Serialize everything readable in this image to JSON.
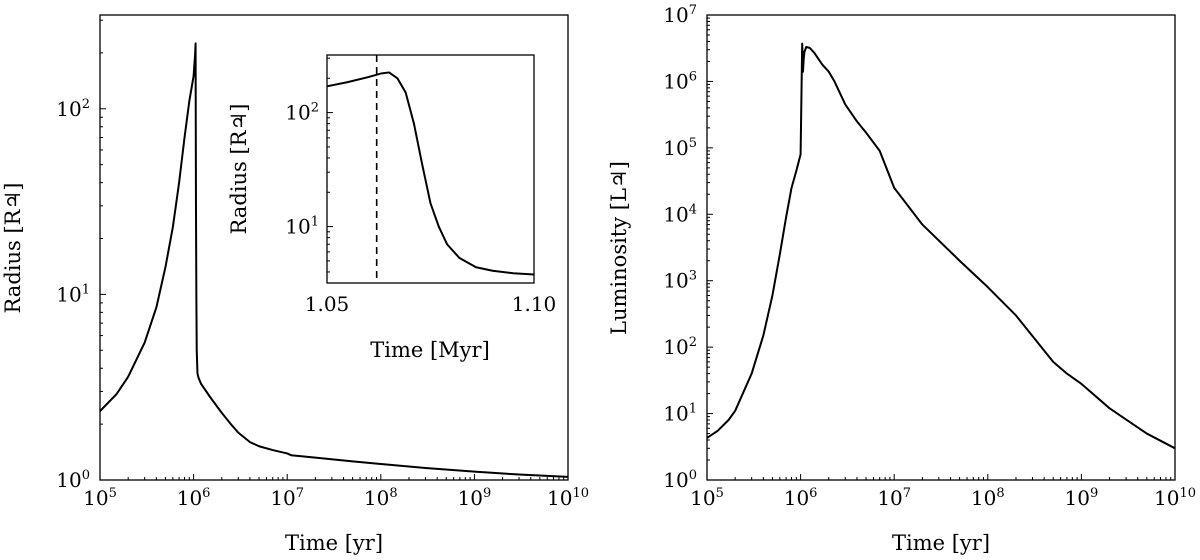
{
  "chart_data": [
    {
      "id": "radius",
      "type": "line",
      "xscale": "log",
      "yscale": "log",
      "xlabel": "Time [yr]",
      "ylabel": "Radius [R♃]",
      "xlim": [
        100000,
        10000000000
      ],
      "ylim": [
        1,
        320
      ],
      "xticks": [
        {
          "base": "10",
          "exp": "5"
        },
        {
          "base": "10",
          "exp": "6"
        },
        {
          "base": "10",
          "exp": "7"
        },
        {
          "base": "10",
          "exp": "8"
        },
        {
          "base": "10",
          "exp": "9"
        },
        {
          "base": "10",
          "exp": "10"
        }
      ],
      "yticks": [
        {
          "base": "10",
          "exp": "0"
        },
        {
          "base": "10",
          "exp": "1"
        },
        {
          "base": "10",
          "exp": "2"
        }
      ],
      "series": [
        {
          "name": "radius",
          "x": [
            100000,
            150000,
            200000,
            300000,
            400000,
            500000,
            600000,
            700000,
            800000,
            900000,
            1000000,
            1040000,
            1050000,
            1055000,
            1060000,
            1070000,
            1080000,
            1100000,
            1130000,
            1200000,
            1500000,
            2000000,
            2500000,
            3000000,
            4000000,
            5000000,
            7000000,
            10000000,
            11000000,
            20000000,
            50000000,
            100000000,
            300000000,
            1000000000,
            3000000000,
            10000000000
          ],
          "y": [
            2.35,
            2.9,
            3.6,
            5.5,
            8.5,
            14,
            23,
            40,
            70,
            110,
            150,
            200,
            225,
            80,
            30,
            10,
            5,
            3.75,
            3.55,
            3.3,
            2.8,
            2.3,
            2,
            1.8,
            1.6,
            1.52,
            1.45,
            1.39,
            1.36,
            1.32,
            1.26,
            1.22,
            1.16,
            1.11,
            1.07,
            1.04
          ]
        }
      ],
      "inset": {
        "xlabel": "Time [Myr]",
        "ylabel": "Radius [R♃]",
        "xlim": [
          1.05,
          1.1
        ],
        "ylim": [
          3.2,
          320
        ],
        "xticks": [
          "1.05",
          "1.10"
        ],
        "yticks": [
          {
            "base": "10",
            "exp": "1"
          },
          {
            "base": "10",
            "exp": "2"
          }
        ],
        "vline": 1.062,
        "series": [
          {
            "name": "radius-zoom",
            "x": [
              1.05,
              1.055,
              1.06,
              1.063,
              1.065,
              1.067,
              1.069,
              1.071,
              1.073,
              1.075,
              1.077,
              1.079,
              1.082,
              1.086,
              1.09,
              1.095,
              1.1
            ],
            "y": [
              170,
              185,
              205,
              220,
              225,
              200,
              150,
              80,
              35,
              16,
              10,
              7,
              5.3,
              4.4,
              4.1,
              3.9,
              3.8
            ]
          }
        ]
      }
    },
    {
      "id": "luminosity",
      "type": "line",
      "xscale": "log",
      "yscale": "log",
      "xlabel": "Time [yr]",
      "ylabel": "Luminosity [L♃]",
      "xlim": [
        100000,
        10000000000
      ],
      "ylim": [
        1,
        10000000
      ],
      "xticks": [
        {
          "base": "10",
          "exp": "5"
        },
        {
          "base": "10",
          "exp": "6"
        },
        {
          "base": "10",
          "exp": "7"
        },
        {
          "base": "10",
          "exp": "8"
        },
        {
          "base": "10",
          "exp": "9"
        },
        {
          "base": "10",
          "exp": "10"
        }
      ],
      "yticks": [
        {
          "base": "10",
          "exp": "0"
        },
        {
          "base": "10",
          "exp": "1"
        },
        {
          "base": "10",
          "exp": "2"
        },
        {
          "base": "10",
          "exp": "3"
        },
        {
          "base": "10",
          "exp": "4"
        },
        {
          "base": "10",
          "exp": "5"
        },
        {
          "base": "10",
          "exp": "6"
        },
        {
          "base": "10",
          "exp": "7"
        }
      ],
      "series": [
        {
          "name": "luminosity",
          "x": [
            100000,
            130000,
            170000,
            200000,
            300000,
            400000,
            500000,
            600000,
            700000,
            800000,
            900000,
            1000000,
            1040000,
            1050000,
            1060000,
            1080000,
            1100000,
            1150000,
            1250000,
            1400000,
            1700000,
            2000000,
            2300000,
            3000000,
            4000000,
            5000000,
            7000000,
            10000000,
            20000000,
            50000000,
            100000000,
            200000000,
            500000000,
            700000000,
            1000000000,
            2000000000,
            5000000000,
            10000000000
          ],
          "y": [
            4.3,
            5.5,
            8,
            11,
            40,
            150,
            600,
            2500,
            9000,
            25000,
            45000,
            80000,
            3700000,
            2500000,
            1400000,
            2200000,
            2800000,
            3300000,
            3200000,
            2700000,
            1800000,
            1400000,
            1000000,
            450000,
            250000,
            170000,
            90000,
            25000,
            7000,
            2000,
            800,
            300,
            60,
            40,
            28,
            12,
            5,
            3
          ]
        }
      ]
    }
  ]
}
